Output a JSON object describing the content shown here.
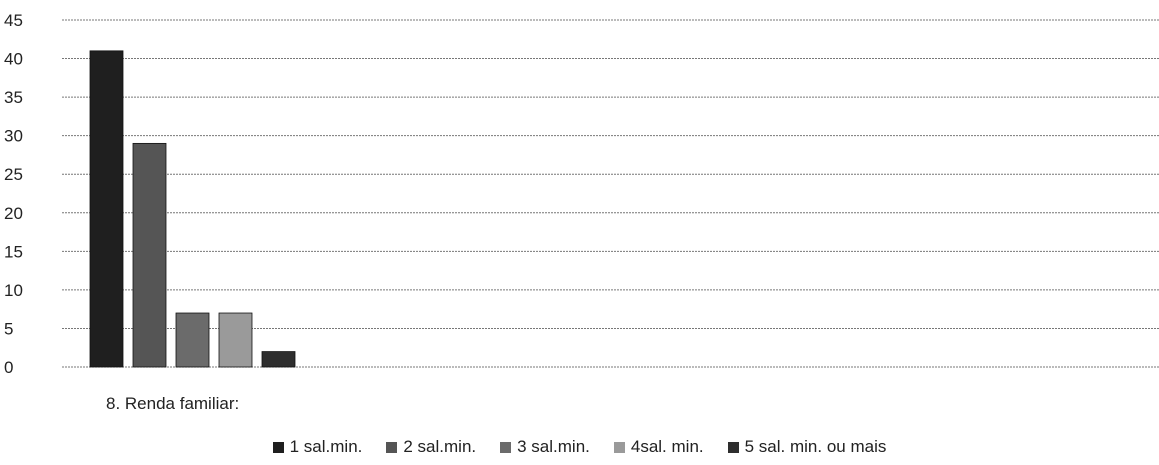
{
  "chart_data": {
    "type": "bar",
    "title": "",
    "xlabel": "8. Renda familiar:",
    "ylabel": "",
    "ylim": [
      0,
      45
    ],
    "yticks": [
      0,
      5,
      10,
      15,
      20,
      25,
      30,
      35,
      40,
      45
    ],
    "categories": [
      "1 sal.min.",
      "2 sal.min.",
      "3 sal.min.",
      "4sal. min.",
      "5 sal. min. ou mais"
    ],
    "values": [
      41,
      29,
      7,
      7,
      2
    ],
    "colors": [
      "#1f1f1f",
      "#555555",
      "#6b6b6b",
      "#9a9a9a",
      "#2e2e2e"
    ],
    "grid": true,
    "legend_position": "bottom"
  }
}
